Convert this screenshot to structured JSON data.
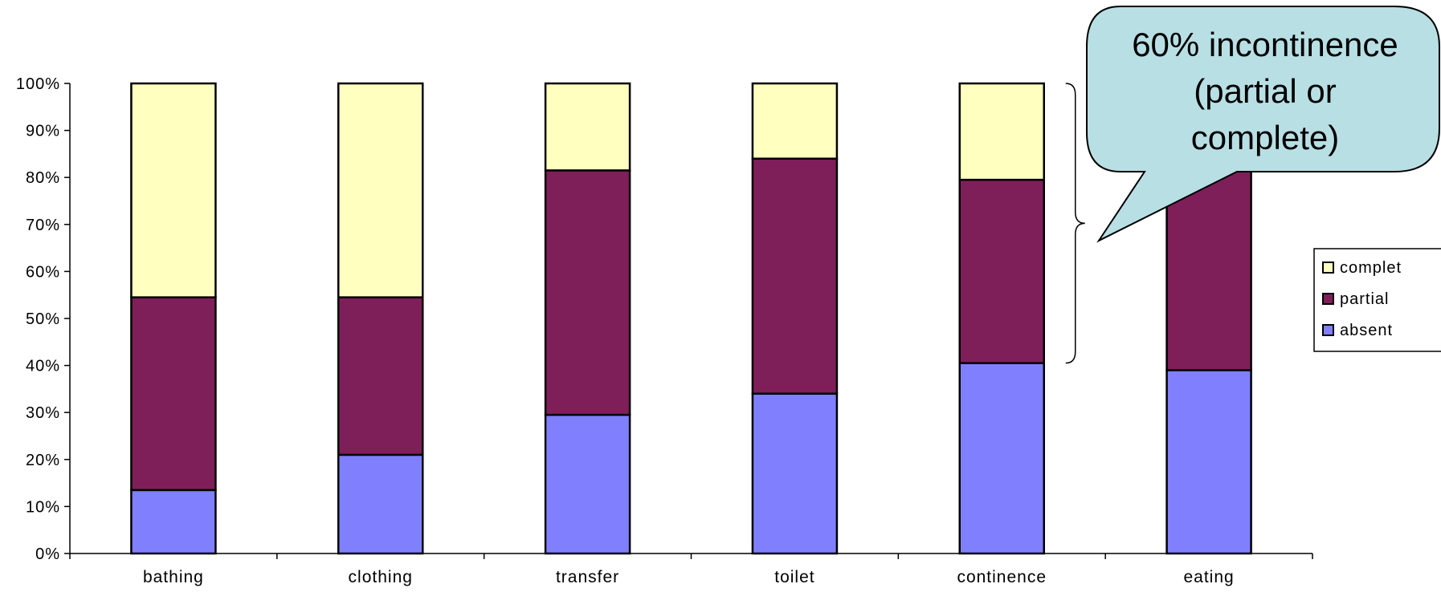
{
  "chart_data": {
    "type": "bar",
    "stacked": true,
    "title": "",
    "xlabel": "",
    "ylabel": "",
    "ylim": [
      0,
      100
    ],
    "y_ticks": [
      "0%",
      "10%",
      "20%",
      "30%",
      "40%",
      "50%",
      "60%",
      "70%",
      "80%",
      "90%",
      "100%"
    ],
    "categories": [
      "bathing",
      "clothing",
      "transfer",
      "toilet",
      "continence",
      "eating"
    ],
    "series": [
      {
        "name": "absent",
        "color": "#8080ff",
        "values": [
          13.5,
          21,
          29.5,
          34,
          40.5,
          39
        ]
      },
      {
        "name": "partial",
        "color": "#7f1f5a",
        "values": [
          41,
          33.5,
          52,
          50,
          39,
          61
        ]
      },
      {
        "name": "complet",
        "color": "#ffffc0",
        "values": [
          45.5,
          45.5,
          18.5,
          16,
          20.5,
          0
        ]
      }
    ],
    "legend": {
      "position": "right",
      "order": [
        "complet",
        "partial",
        "absent"
      ]
    },
    "annotation": {
      "lines": [
        "60% incontinence",
        "(partial or",
        "complete)"
      ],
      "fill": "#b8dfe4",
      "target_category": "continence"
    },
    "grid": false
  }
}
